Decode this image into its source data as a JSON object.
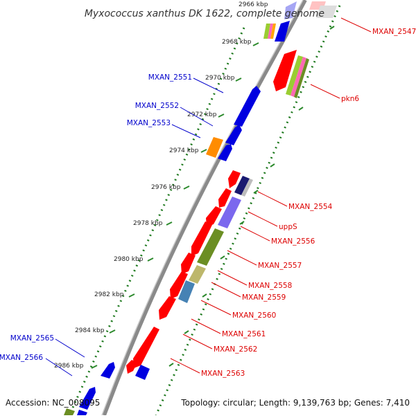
{
  "header": {
    "title": "Myxococcus xanthus DK 1622, complete genome"
  },
  "footer": {
    "accession": "Accession: NC_008095",
    "summary": "Topology: circular; Length: 9,139,763 bp; Genes: 7,410"
  },
  "colors": {
    "backbone": "#8a8a8a",
    "forward_gene": "#0000e0",
    "reverse_gene": "#ff0000",
    "forward_label": "#0000cc",
    "reverse_label": "#dd0000",
    "tick_dots": "#1f7a1f",
    "tick_dash": "#2c8a2c"
  },
  "ticks": [
    "2966 kbp",
    "2968 kbp",
    "2970 kbp",
    "2972 kbp",
    "2974 kbp",
    "2976 kbp",
    "2978 kbp",
    "2980 kbp",
    "2982 kbp",
    "2984 kbp",
    "2986 kbp"
  ],
  "forward_labels": [
    "MXAN_2551",
    "MXAN_2552",
    "MXAN_2553",
    "MXAN_2565",
    "MXAN_2566"
  ],
  "reverse_labels": [
    "MXAN_2547",
    "pkn6",
    "MXAN_2554",
    "uppS",
    "MXAN_2556",
    "MXAN_2557",
    "MXAN_2558",
    "MXAN_2559",
    "MXAN_2560",
    "MXAN_2561",
    "MXAN_2562",
    "MXAN_2563"
  ],
  "feature_colors": {
    "forward": [
      "#0000e0",
      "#0000e0",
      "#0000e0",
      "#ff8c00",
      "#0000e0",
      "#0000e0",
      "#0000e0"
    ],
    "reverse": [
      "#ff0000",
      "#191970",
      "#7b68ee",
      "#6b8e23",
      "#bdb76b",
      "#4682b4"
    ]
  }
}
